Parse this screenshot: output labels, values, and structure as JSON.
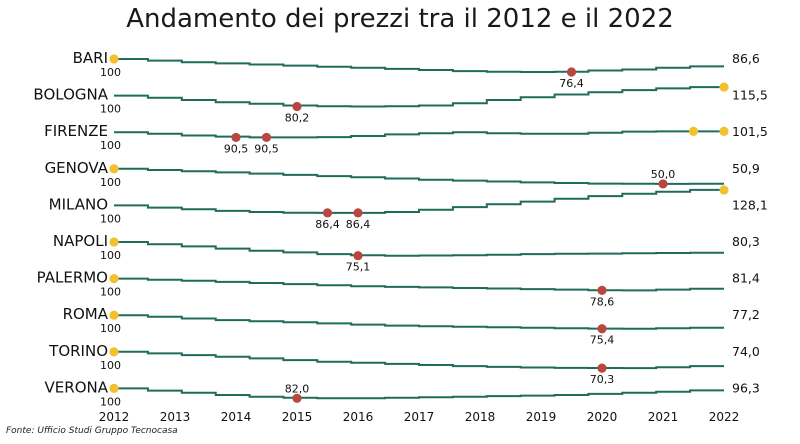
{
  "title": "Andamento dei prezzi tra il 2012 e il 2022",
  "source": "Fonte: Ufficio Studi Gruppo Tecnocasa",
  "colors": {
    "line": "#1f6b5c",
    "min_marker": "#b8473f",
    "max_marker": "#f2c12e"
  },
  "chart_data": {
    "type": "line",
    "title": "Andamento dei prezzi tra il 2012 e il 2022",
    "x_ticks": [
      "2012",
      "2013",
      "2014",
      "2015",
      "2016",
      "2017",
      "2018",
      "2019",
      "2020",
      "2021",
      "2022"
    ],
    "series": [
      {
        "name": "BARI",
        "start": "100",
        "end": "86,6",
        "start_value": 100,
        "end_value": 86.6,
        "grid_lines": false,
        "values": [
          100,
          97,
          94,
          92,
          90,
          88,
          86,
          84,
          82,
          80,
          78,
          77,
          76.4,
          77,
          79,
          81,
          84,
          86.6
        ],
        "markers": [
          {
            "kind": "max",
            "year": 2012,
            "value": 100
          },
          {
            "kind": "min",
            "year": 2019.5,
            "value": 76.4,
            "label": "76,4"
          }
        ]
      },
      {
        "name": "BOLOGNA",
        "start": "100",
        "end": "115,5",
        "start_value": 100,
        "end_value": 115.5,
        "values": [
          100,
          96,
          92,
          88,
          85,
          82,
          80.5,
          80.2,
          80.5,
          82,
          86,
          92,
          97,
          102,
          106,
          110,
          113,
          115.5
        ],
        "markers": [
          {
            "kind": "min",
            "year": 2015,
            "value": 80.2,
            "label": "80,2"
          },
          {
            "kind": "max",
            "year": 2022,
            "value": 115.5
          }
        ]
      },
      {
        "name": "FIRENZE",
        "start": "100",
        "end": "101,5",
        "start_value": 100,
        "end_value": 101.5,
        "values": [
          100,
          97,
          94,
          92,
          90.5,
          90.5,
          91,
          93,
          96,
          98,
          100,
          98,
          97,
          97,
          99,
          101,
          101.5,
          101.5
        ],
        "markers": [
          {
            "kind": "min",
            "year": 2014,
            "value": 90.5,
            "label": "90,5"
          },
          {
            "kind": "min",
            "year": 2014.5,
            "value": 90.5,
            "label": "90,5"
          },
          {
            "kind": "max",
            "year": 2021.5,
            "value": 101.5
          },
          {
            "kind": "max",
            "year": 2022,
            "value": 101.5
          }
        ]
      },
      {
        "name": "GENOVA",
        "start": "100",
        "end": "50,9",
        "start_value": 100,
        "end_value": 50.9,
        "values": [
          100,
          96,
          92,
          88,
          84,
          80,
          76,
          72,
          68,
          64,
          61,
          58,
          55,
          53,
          51,
          50.3,
          50.0,
          50.9
        ],
        "markers": [
          {
            "kind": "max",
            "year": 2012,
            "value": 100
          },
          {
            "kind": "min",
            "year": 2021,
            "value": 50.0,
            "label": "50,0"
          }
        ]
      },
      {
        "name": "MILANO",
        "start": "100",
        "end": "128,1",
        "start_value": 100,
        "end_value": 128.1,
        "values": [
          100,
          96,
          93,
          90,
          88,
          86.6,
          86.4,
          86.4,
          88,
          92,
          97,
          102,
          107,
          112,
          117,
          121,
          125,
          128.1
        ],
        "markers": [
          {
            "kind": "min",
            "year": 2015.5,
            "value": 86.4,
            "label": "86,4"
          },
          {
            "kind": "min",
            "year": 2016,
            "value": 86.4,
            "label": "86,4"
          },
          {
            "kind": "max",
            "year": 2022,
            "value": 128.1
          }
        ]
      },
      {
        "name": "NAPOLI",
        "start": "100",
        "end": "80,3",
        "start_value": 100,
        "end_value": 80.3,
        "values": [
          100,
          96,
          92,
          88,
          84,
          81,
          78,
          76,
          75.1,
          75.5,
          76,
          77,
          78,
          78.5,
          79,
          79.5,
          80,
          80.3
        ],
        "markers": [
          {
            "kind": "max",
            "year": 2012,
            "value": 100
          },
          {
            "kind": "min",
            "year": 2016,
            "value": 75.1,
            "label": "75,1"
          }
        ]
      },
      {
        "name": "PALERMO",
        "start": "100",
        "end": "81,4",
        "start_value": 100,
        "end_value": 81.4,
        "values": [
          100,
          98,
          96,
          94,
          92,
          90,
          88,
          86,
          85,
          84,
          83,
          82,
          81,
          80,
          79,
          78.6,
          80,
          81.4
        ],
        "markers": [
          {
            "kind": "max",
            "year": 2012,
            "value": 100
          },
          {
            "kind": "min",
            "year": 2020,
            "value": 78.6,
            "label": "78,6"
          }
        ]
      },
      {
        "name": "ROMA",
        "start": "100",
        "end": "77,2",
        "start_value": 100,
        "end_value": 77.2,
        "values": [
          100,
          97,
          94,
          91,
          89,
          87,
          85,
          83,
          81,
          80,
          79,
          78,
          77,
          76.2,
          75.6,
          75.4,
          76.3,
          77.2
        ],
        "markers": [
          {
            "kind": "max",
            "year": 2012,
            "value": 100
          },
          {
            "kind": "min",
            "year": 2020,
            "value": 75.4,
            "label": "75,4"
          }
        ]
      },
      {
        "name": "TORINO",
        "start": "100",
        "end": "74,0",
        "start_value": 100,
        "end_value": 74.0,
        "values": [
          100,
          97,
          94,
          91,
          88,
          85,
          82,
          80,
          78,
          76,
          74,
          72.5,
          71.5,
          70.8,
          70.5,
          70.3,
          72,
          74.0
        ],
        "markers": [
          {
            "kind": "max",
            "year": 2012,
            "value": 100
          },
          {
            "kind": "min",
            "year": 2020,
            "value": 70.3,
            "label": "70,3"
          }
        ]
      },
      {
        "name": "VERONA",
        "start": "100",
        "end": "96,3",
        "start_value": 100,
        "end_value": 96.3,
        "values": [
          100,
          96,
          92,
          88,
          85,
          83,
          82.0,
          82.2,
          83,
          84,
          85,
          86,
          87,
          88,
          90,
          92,
          94,
          96.3
        ],
        "markers": [
          {
            "kind": "max",
            "year": 2012,
            "value": 100
          },
          {
            "kind": "min",
            "year": 2015,
            "value": 82.0,
            "label": "82,0"
          }
        ]
      }
    ]
  }
}
